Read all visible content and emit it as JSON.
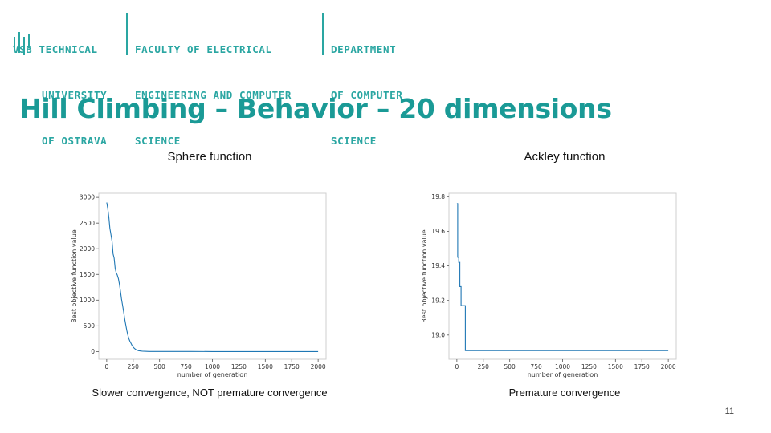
{
  "logo": {
    "university": [
      "VSB TECHNICAL",
      "UNIVERSITY",
      "OF OSTRAVA"
    ],
    "faculty": [
      "FACULTY OF ELECTRICAL",
      "ENGINEERING AND COMPUTER",
      "SCIENCE"
    ],
    "department": [
      "DEPARTMENT",
      "OF COMPUTER",
      "SCIENCE"
    ],
    "color": "#2aa6a2"
  },
  "slide": {
    "title": "Hill Climbing – Behavior – 20 dimensions",
    "page_number": "11",
    "title_color": "#1a9a96"
  },
  "chart_data": [
    {
      "type": "line",
      "title": "Sphere function",
      "caption": "Slower convergence, NOT premature convergence",
      "xlabel": "number of generation",
      "ylabel": "Best objective function value",
      "xlim": [
        -75,
        2075
      ],
      "ylim": [
        -150,
        3080
      ],
      "xticks": [
        0,
        250,
        500,
        750,
        1000,
        1250,
        1500,
        1750,
        2000
      ],
      "yticks": [
        0,
        500,
        1000,
        1500,
        2000,
        2500,
        3000
      ],
      "line_color": "#1f77b4",
      "series": [
        {
          "x": [
            0,
            10,
            20,
            30,
            40,
            50,
            60,
            70,
            80,
            90,
            100,
            110,
            120,
            130,
            140,
            150,
            160,
            170,
            180,
            190,
            200,
            210,
            220,
            230,
            240,
            250,
            260,
            270,
            280,
            290,
            300,
            320,
            340,
            360,
            380,
            400,
            450,
            500,
            600,
            800,
            1000,
            1500,
            2000
          ],
          "y": [
            2900,
            2780,
            2620,
            2400,
            2280,
            2150,
            1900,
            1820,
            1620,
            1530,
            1490,
            1420,
            1310,
            1170,
            1020,
            900,
            780,
            640,
            520,
            410,
            320,
            250,
            200,
            160,
            115,
            88,
            65,
            48,
            34,
            25,
            17,
            10,
            6,
            4,
            3,
            2,
            1.5,
            1,
            0.8,
            0.6,
            0.5,
            0.3,
            0.2
          ]
        }
      ]
    },
    {
      "type": "line",
      "title": "Ackley function",
      "caption": "Premature convergence",
      "xlabel": "number of generation",
      "ylabel": "Best objective function value",
      "xlim": [
        -75,
        2075
      ],
      "ylim": [
        18.86,
        19.82
      ],
      "xticks": [
        0,
        250,
        500,
        750,
        1000,
        1250,
        1500,
        1750,
        2000
      ],
      "yticks": [
        19.0,
        19.2,
        19.4,
        19.6,
        19.8
      ],
      "ytick_labels": [
        "19.0",
        "19.2",
        "19.4",
        "19.6",
        "19.8"
      ],
      "line_color": "#1f77b4",
      "series": [
        {
          "x": [
            0,
            8,
            8,
            18,
            18,
            28,
            28,
            40,
            40,
            80,
            80,
            2000
          ],
          "y": [
            19.76,
            19.76,
            19.45,
            19.45,
            19.42,
            19.42,
            19.28,
            19.28,
            19.17,
            19.17,
            18.91,
            18.91
          ]
        }
      ]
    }
  ]
}
